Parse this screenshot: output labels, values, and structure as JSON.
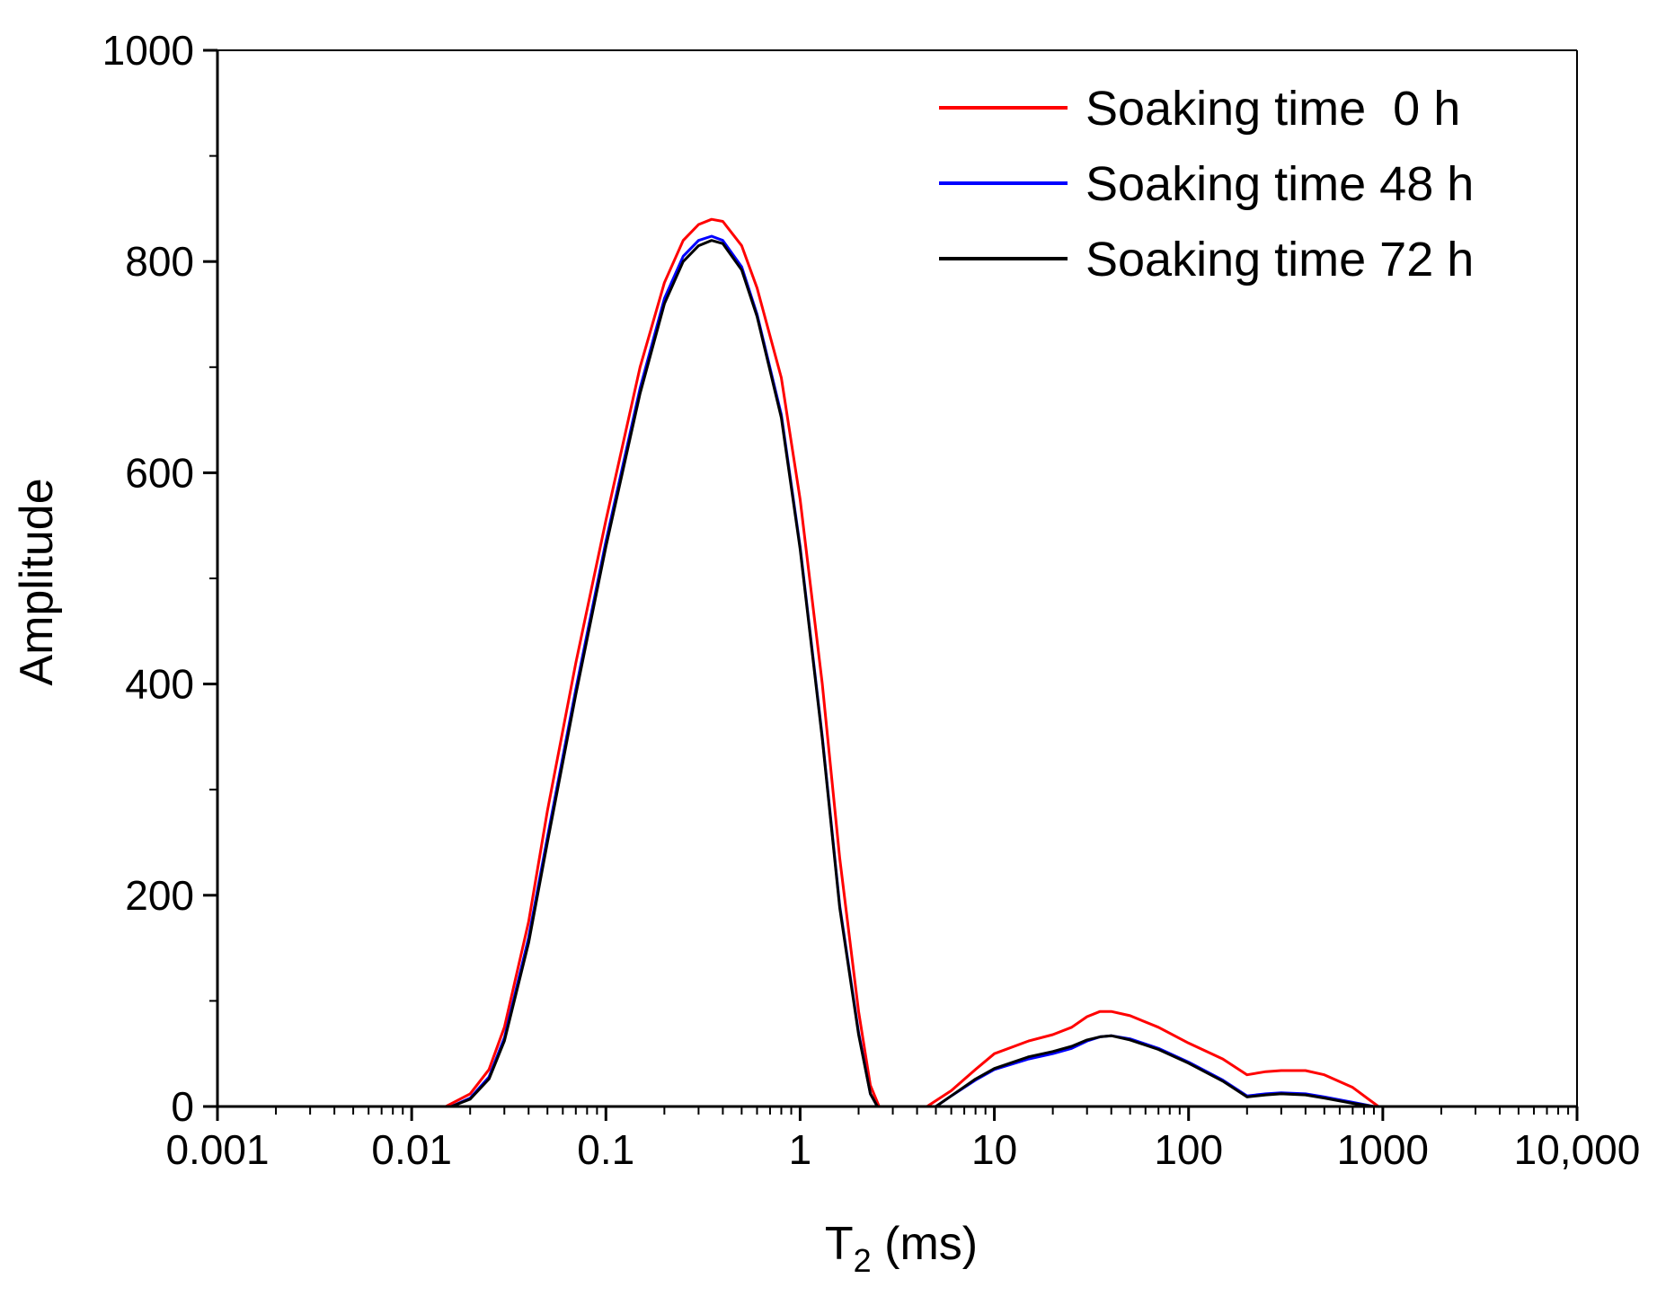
{
  "chart_data": {
    "type": "line",
    "title": "",
    "xlabel_main": "T",
    "xlabel_sub": "2",
    "xlabel_unit": " (ms)",
    "ylabel": "Amplitude",
    "xscale": "log",
    "xlim": [
      0.001,
      10000
    ],
    "ylim": [
      0,
      1000
    ],
    "xticks": [
      0.001,
      0.01,
      0.1,
      1,
      10,
      100,
      1000,
      10000
    ],
    "xtick_labels": [
      "0.001",
      "0.01",
      "0.1",
      "1",
      "10",
      "100",
      "1000",
      "10,000"
    ],
    "yticks": [
      0,
      200,
      400,
      600,
      800,
      1000
    ],
    "ytick_labels": [
      "0",
      "200",
      "400",
      "600",
      "800",
      "1000"
    ],
    "legend_position": "top-right",
    "series": [
      {
        "name": "Soaking time  0 h",
        "color": "#ff0000",
        "x": [
          0.015,
          0.02,
          0.025,
          0.03,
          0.04,
          0.05,
          0.07,
          0.1,
          0.15,
          0.2,
          0.25,
          0.3,
          0.35,
          0.4,
          0.5,
          0.6,
          0.8,
          1,
          1.3,
          1.6,
          2,
          2.3,
          2.55,
          4.5,
          6,
          8,
          10,
          15,
          20,
          25,
          30,
          35,
          40,
          50,
          70,
          100,
          150,
          200,
          250,
          300,
          400,
          500,
          700,
          950
        ],
        "y": [
          0,
          12,
          35,
          75,
          175,
          280,
          420,
          555,
          700,
          780,
          820,
          835,
          840,
          838,
          815,
          775,
          690,
          575,
          400,
          235,
          90,
          20,
          0,
          0,
          15,
          35,
          50,
          62,
          68,
          75,
          85,
          90,
          90,
          86,
          75,
          60,
          45,
          30,
          33,
          34,
          34,
          30,
          18,
          0
        ]
      },
      {
        "name": "Soaking time 48 h",
        "color": "#0000ff",
        "x": [
          0.016,
          0.02,
          0.025,
          0.03,
          0.04,
          0.05,
          0.07,
          0.1,
          0.15,
          0.2,
          0.25,
          0.3,
          0.35,
          0.4,
          0.5,
          0.6,
          0.8,
          1,
          1.3,
          1.6,
          2,
          2.3,
          2.5,
          5,
          6,
          8,
          10,
          15,
          20,
          25,
          30,
          35,
          40,
          50,
          70,
          100,
          150,
          200,
          250,
          300,
          400,
          500,
          700,
          900
        ],
        "y": [
          0,
          8,
          28,
          65,
          160,
          255,
          395,
          535,
          680,
          765,
          805,
          820,
          824,
          820,
          795,
          750,
          655,
          530,
          350,
          190,
          70,
          12,
          0,
          0,
          10,
          25,
          35,
          45,
          50,
          55,
          62,
          66,
          67,
          64,
          55,
          42,
          25,
          10,
          12,
          13,
          12,
          9,
          4,
          0
        ]
      },
      {
        "name": "Soaking time 72 h",
        "color": "#000000",
        "x": [
          0.016,
          0.02,
          0.025,
          0.03,
          0.04,
          0.05,
          0.07,
          0.1,
          0.15,
          0.2,
          0.25,
          0.3,
          0.35,
          0.4,
          0.5,
          0.6,
          0.8,
          1,
          1.3,
          1.6,
          2,
          2.3,
          2.5,
          5,
          6,
          8,
          10,
          15,
          20,
          25,
          30,
          35,
          40,
          50,
          70,
          100,
          150,
          200,
          250,
          300,
          400,
          500,
          700,
          900
        ],
        "y": [
          0,
          7,
          26,
          62,
          155,
          250,
          390,
          530,
          675,
          760,
          800,
          815,
          820,
          817,
          792,
          748,
          652,
          528,
          348,
          188,
          68,
          12,
          0,
          0,
          10,
          26,
          36,
          47,
          52,
          57,
          63,
          66,
          67,
          63,
          54,
          41,
          24,
          9,
          11,
          12,
          11,
          8,
          3,
          0
        ]
      }
    ]
  }
}
